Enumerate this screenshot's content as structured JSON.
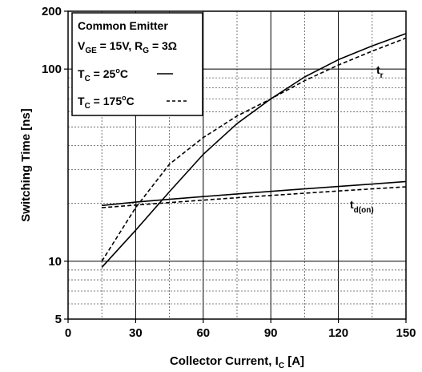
{
  "chart_data": {
    "type": "line",
    "title": "",
    "xlabel": {
      "main": "Collector Current, I",
      "sub": "C",
      "tail": " [A]"
    },
    "ylabel": "Switching Time [ns]",
    "xlim": [
      0,
      150
    ],
    "ylim": [
      5,
      200
    ],
    "yscale": "log",
    "grid": true,
    "x_ticks": [
      0,
      30,
      60,
      90,
      120,
      150
    ],
    "x_tick_labels": [
      "0",
      "30",
      "60",
      "90",
      "120",
      "150"
    ],
    "y_ticks": [
      5,
      10,
      100,
      200
    ],
    "y_tick_labels": [
      "5",
      "10",
      "100",
      "200"
    ],
    "legend_position": "top-left",
    "legend": {
      "line1": "Common Emitter",
      "line2": {
        "a": "V",
        "a_sub": "GE",
        "b": " = 15V, R",
        "b_sub": "G",
        "c": " = 3Ω"
      },
      "line3": {
        "a": "T",
        "a_sub": "C",
        "b": " = 25",
        "b_sup": "o",
        "c": "C"
      },
      "line4": {
        "a": "T",
        "a_sub": "C",
        "b": " = 175",
        "b_sup": "o",
        "c": "C"
      }
    },
    "series_labels": {
      "tr": {
        "main": "t",
        "sub": "r"
      },
      "tdon": {
        "main": "t",
        "sub": "d(on)"
      }
    },
    "series": [
      {
        "curve": "tr",
        "condition": "25C",
        "style": "solid",
        "x": [
          15,
          30,
          45,
          60,
          75,
          90,
          105,
          120,
          135,
          150
        ],
        "y": [
          9.3,
          14.5,
          23,
          36,
          52,
          70,
          91,
          112,
          132,
          153
        ]
      },
      {
        "curve": "tr",
        "condition": "175C",
        "style": "dashed",
        "x": [
          15,
          30,
          45,
          60,
          75,
          90,
          105,
          120,
          135,
          150
        ],
        "y": [
          10,
          19,
          32,
          44,
          57,
          70,
          87,
          105,
          124,
          145
        ]
      },
      {
        "curve": "tdon",
        "condition": "25C",
        "style": "solid",
        "x": [
          15,
          30,
          45,
          60,
          75,
          90,
          105,
          120,
          135,
          150
        ],
        "y": [
          19.5,
          20.3,
          21.0,
          21.7,
          22.4,
          23.1,
          23.8,
          24.5,
          25.2,
          26.0
        ]
      },
      {
        "curve": "tdon",
        "condition": "175C",
        "style": "dashed",
        "x": [
          15,
          30,
          45,
          60,
          75,
          90,
          105,
          120,
          135,
          150
        ],
        "y": [
          19.0,
          19.6,
          20.2,
          20.8,
          21.4,
          22.0,
          22.6,
          23.2,
          23.8,
          24.4
        ]
      }
    ]
  }
}
